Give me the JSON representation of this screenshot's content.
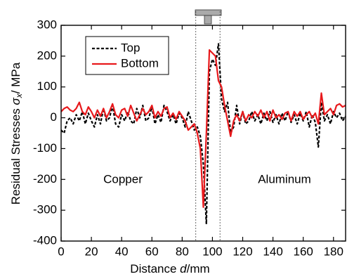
{
  "chart_data": {
    "type": "line",
    "x_label": {
      "text": "Distance ",
      "symbol": "d",
      "unit": "/mm"
    },
    "y_label": {
      "text": "Residual Stresses ",
      "symbol": "σ",
      "subscript": "x",
      "unit": "/ MPa"
    },
    "annotations": [
      "Copper",
      "Aluminum"
    ],
    "markers": [
      89,
      105
    ],
    "x": [
      0,
      2,
      4,
      6,
      8,
      10,
      12,
      14,
      16,
      18,
      20,
      22,
      24,
      26,
      28,
      30,
      32,
      34,
      36,
      38,
      40,
      42,
      44,
      46,
      48,
      50,
      52,
      54,
      56,
      58,
      60,
      62,
      64,
      66,
      68,
      70,
      72,
      74,
      76,
      78,
      80,
      82,
      84,
      86,
      88,
      90,
      92,
      94,
      96,
      98,
      100,
      102,
      104,
      106,
      108,
      110,
      112,
      114,
      116,
      118,
      120,
      122,
      124,
      126,
      128,
      130,
      132,
      134,
      136,
      138,
      140,
      142,
      144,
      146,
      148,
      150,
      152,
      154,
      156,
      158,
      160,
      162,
      164,
      166,
      168,
      170,
      172,
      174,
      176,
      178,
      180,
      182,
      184,
      186,
      188
    ],
    "series": [
      {
        "name": "Top",
        "color": "#000000",
        "dash": true,
        "values": [
          -40,
          -50,
          -10,
          0,
          -20,
          10,
          -10,
          20,
          -20,
          15,
          -10,
          -30,
          10,
          -20,
          30,
          -10,
          0,
          40,
          -20,
          -30,
          10,
          -10,
          20,
          -10,
          -20,
          30,
          0,
          40,
          -10,
          0,
          35,
          -20,
          10,
          -15,
          40,
          20,
          -10,
          10,
          -20,
          15,
          0,
          -30,
          20,
          -10,
          -40,
          -30,
          -60,
          -150,
          -345,
          150,
          190,
          170,
          240,
          60,
          20,
          50,
          -50,
          -30,
          40,
          -20,
          20,
          -20,
          -10,
          20,
          -10,
          10,
          -20,
          15,
          -10,
          20,
          -15,
          10,
          -20,
          15,
          -10,
          20,
          -15,
          10,
          -20,
          15,
          -10,
          20,
          -30,
          10,
          -15,
          -95,
          50,
          -10,
          10,
          -20,
          20,
          0,
          15,
          -10,
          5
        ]
      },
      {
        "name": "Bottom",
        "color": "#e8191c",
        "dash": false,
        "values": [
          20,
          30,
          35,
          25,
          20,
          30,
          50,
          20,
          10,
          35,
          20,
          0,
          25,
          5,
          30,
          0,
          20,
          45,
          10,
          0,
          25,
          30,
          5,
          40,
          15,
          -10,
          10,
          30,
          10,
          20,
          40,
          0,
          20,
          5,
          30,
          35,
          0,
          15,
          -5,
          20,
          5,
          -10,
          -40,
          -30,
          -20,
          -50,
          -100,
          -290,
          -50,
          220,
          210,
          200,
          120,
          100,
          40,
          -10,
          -60,
          -10,
          10,
          -10,
          20,
          -10,
          10,
          0,
          20,
          5,
          25,
          0,
          20,
          -10,
          25,
          0,
          10,
          -5,
          15,
          20,
          -10,
          20,
          5,
          20,
          -5,
          10,
          20,
          0,
          15,
          -20,
          80,
          10,
          20,
          30,
          10,
          40,
          45,
          35,
          40
        ]
      }
    ],
    "xlim": [
      0,
      188
    ],
    "ylim": [
      -400,
      300
    ],
    "xticks": [
      0,
      20,
      40,
      60,
      80,
      100,
      120,
      140,
      160,
      180
    ],
    "yticks": [
      -400,
      -300,
      -200,
      -100,
      0,
      100,
      200,
      300
    ],
    "legend": "upper left"
  }
}
